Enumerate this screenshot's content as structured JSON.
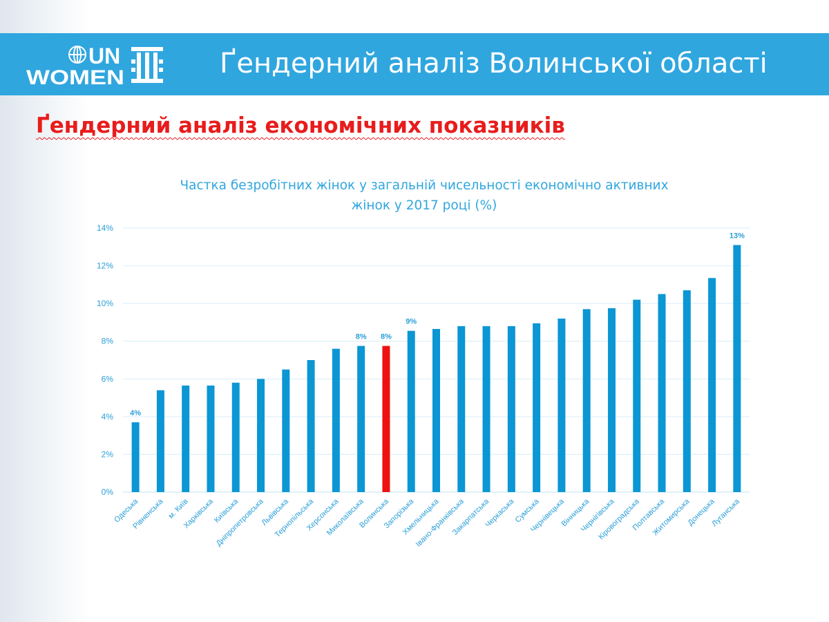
{
  "header": {
    "logo_text_line1": "UN",
    "logo_text_line2": "WOMEN",
    "title": "Ґендерний аналіз Волинської області"
  },
  "section_title": "Ґендерний аналіз економічних показників",
  "colors": {
    "accent": "#30a6df",
    "bar": "#0b96d4",
    "highlight": "#ee1111",
    "section_title": "#e81c1c"
  },
  "chart_data": {
    "type": "bar",
    "title_lines": [
      "Частка безробітних жінок у загальній чисельності економічно активних",
      "жінок у 2017 році (%)"
    ],
    "xlabel": "",
    "ylabel": "",
    "ylim": [
      0,
      14
    ],
    "yticks": [
      "0%",
      "2%",
      "4%",
      "6%",
      "8%",
      "10%",
      "12%",
      "14%"
    ],
    "grid": true,
    "categories": [
      "Одеська",
      "Рівненська",
      "м. Київ",
      "Харківська",
      "Київська",
      "Дніпропетровська",
      "Львівська",
      "Тернопільська",
      "Херсонська",
      "Миколаївська",
      "Волинська",
      "Запорізька",
      "Хмельницька",
      "Івано-Франківська",
      "Закарпатська",
      "Черкаська",
      "Сумська",
      "Чернівецька",
      "Вінницька",
      "Чернігівська",
      "Кіровоградська",
      "Полтавська",
      "Житомирська",
      "Донецька",
      "Луганська"
    ],
    "values": [
      3.7,
      5.4,
      5.65,
      5.65,
      5.8,
      6.0,
      6.5,
      7.0,
      7.6,
      7.75,
      7.75,
      8.55,
      8.65,
      8.8,
      8.8,
      8.8,
      8.95,
      9.2,
      9.7,
      9.75,
      10.2,
      10.5,
      10.7,
      11.35,
      13.1
    ],
    "highlight": "Волинська",
    "data_labels": [
      {
        "category": "Одеська",
        "text": "4%"
      },
      {
        "category": "Миколаївська",
        "text": "8%"
      },
      {
        "category": "Волинська",
        "text": "8%"
      },
      {
        "category": "Запорізька",
        "text": "9%"
      },
      {
        "category": "Луганська",
        "text": "13%"
      }
    ]
  }
}
